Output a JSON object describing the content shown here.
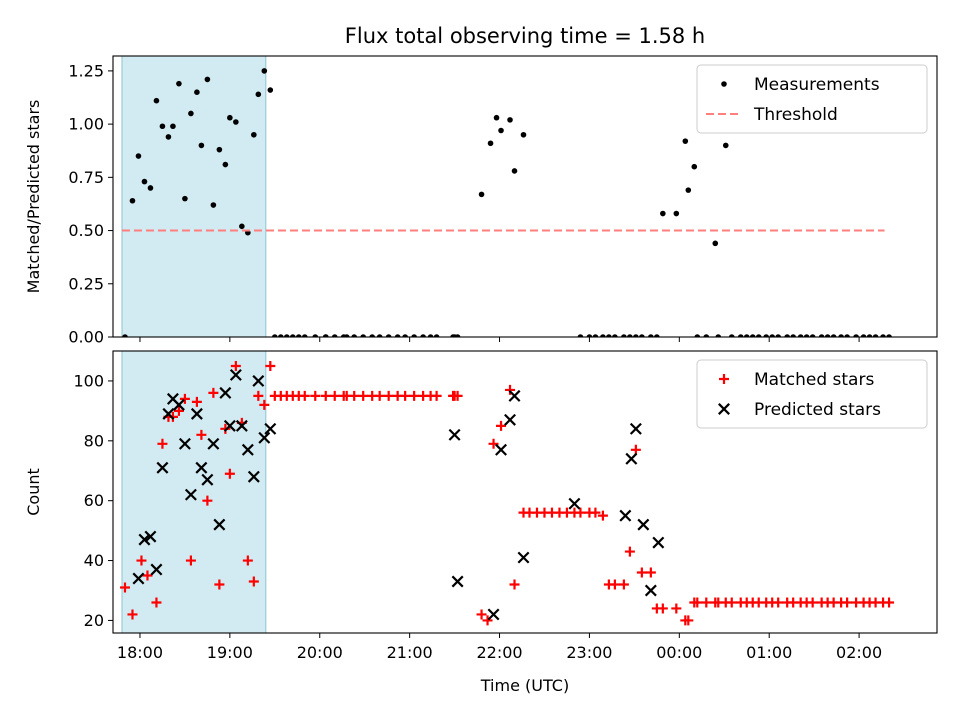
{
  "chart_data": {
    "title": "Flux total observing time = 1.58 h",
    "xlabel": "Time (UTC)",
    "x_ticks": [
      {
        "t": 0,
        "label": "18:00"
      },
      {
        "t": 60,
        "label": "19:00"
      },
      {
        "t": 120,
        "label": "20:00"
      },
      {
        "t": 180,
        "label": "21:00"
      },
      {
        "t": 240,
        "label": "22:00"
      },
      {
        "t": 300,
        "label": "23:00"
      },
      {
        "t": 360,
        "label": "00:00"
      },
      {
        "t": 420,
        "label": "01:00"
      },
      {
        "t": 480,
        "label": "02:00"
      }
    ],
    "shaded_region": {
      "x": [
        -12,
        84
      ],
      "color": "#add8e6"
    },
    "panels": [
      {
        "type": "scatter",
        "ylabel": "Matched/Predicted stars",
        "ylim": [
          0,
          1.32
        ],
        "yticks": [
          "0.00",
          "0.25",
          "0.50",
          "0.75",
          "1.00",
          "1.25"
        ],
        "xlim": [
          -18,
          532
        ],
        "legend": "top-right",
        "series": [
          {
            "name": "Measurements",
            "marker": "dot",
            "color": "#000000",
            "x": [
              -10,
              -5,
              -1,
              3,
              7,
              11,
              15,
              19,
              22,
              26,
              30,
              34,
              38,
              41,
              45,
              49,
              53,
              57,
              60,
              64,
              68,
              72,
              76,
              79,
              83,
              87,
              90,
              94,
              98,
              102,
              106,
              110,
              117,
              124,
              124,
              130,
              136,
              138,
              143,
              149,
              155,
              160,
              166,
              172,
              177,
              183,
              189,
              194,
              198,
              209,
              210,
              212,
              228,
              234,
              238,
              241,
              247,
              250,
              256,
              294,
              300,
              304,
              309,
              313,
              317,
              323,
              327,
              331,
              335,
              341,
              345,
              349,
              358,
              364,
              366,
              370,
              372,
              378,
              384,
              386,
              391,
              395,
              401,
              405,
              409,
              413,
              418,
              422,
              426,
              432,
              436,
              441,
              445,
              449,
              455,
              459,
              463,
              468,
              472,
              478,
              483,
              487,
              491,
              496,
              500
            ],
            "y": [
              0.0,
              0.64,
              0.85,
              0.73,
              0.7,
              1.11,
              0.99,
              0.94,
              0.99,
              1.19,
              0.65,
              1.05,
              1.15,
              0.9,
              1.21,
              0.62,
              0.88,
              0.81,
              1.03,
              1.01,
              0.52,
              0.49,
              0.95,
              1.14,
              1.25,
              1.16,
              0.0,
              0.0,
              0.0,
              0.0,
              0.0,
              0.0,
              0.0,
              0.0,
              0.0,
              0.0,
              0.0,
              0.0,
              0.0,
              0.0,
              0.0,
              0.0,
              0.0,
              0.0,
              0.0,
              0.0,
              0.0,
              0.0,
              0.0,
              0.0,
              0.0,
              0.0,
              0.67,
              0.91,
              1.03,
              0.97,
              1.02,
              0.78,
              0.95,
              0.0,
              0.0,
              0.0,
              0.0,
              0.0,
              0.0,
              0.0,
              0.0,
              0.0,
              0.0,
              0.0,
              0.0,
              0.58,
              0.58,
              0.92,
              0.69,
              0.8,
              0.0,
              0.0,
              0.44,
              0.0,
              0.9,
              0.0,
              0.0,
              0.0,
              0.0,
              0.0,
              0.0,
              0.0,
              0.0,
              0.0,
              0.0,
              0.0,
              0.0,
              0.0,
              0.0,
              0.0,
              0.0,
              0.0,
              0.0,
              0.0,
              0.0,
              0.0,
              0.0,
              0.0,
              0.0
            ]
          },
          {
            "name": "Threshold",
            "marker": "dashed-line",
            "color": "#ff7f7f",
            "x": [
              -12,
              497
            ],
            "y": [
              0.5,
              0.5
            ]
          }
        ]
      },
      {
        "type": "scatter",
        "ylabel": "Count",
        "ylim": [
          15.8,
          110
        ],
        "yticks": [
          "20",
          "40",
          "60",
          "80",
          "100"
        ],
        "xlim": [
          -18,
          532
        ],
        "legend": "top-right",
        "series": [
          {
            "name": "Matched stars",
            "marker": "plus",
            "color": "#ff0000",
            "x": [
              -10,
              -5,
              1,
              5,
              11,
              15,
              19,
              22,
              26,
              30,
              34,
              38,
              41,
              45,
              49,
              53,
              57,
              60,
              64,
              68,
              72,
              76,
              79,
              83,
              87,
              90,
              94,
              98,
              102,
              106,
              110,
              117,
              124,
              130,
              136,
              138,
              143,
              149,
              155,
              160,
              166,
              172,
              177,
              183,
              189,
              194,
              198,
              209,
              210,
              212,
              228,
              232,
              236,
              241,
              247,
              250,
              256,
              260,
              265,
              270,
              275,
              280,
              285,
              290,
              294,
              300,
              304,
              309,
              313,
              317,
              323,
              327,
              331,
              335,
              341,
              345,
              349,
              358,
              364,
              366,
              370,
              372,
              378,
              384,
              386,
              391,
              395,
              401,
              405,
              409,
              413,
              418,
              422,
              426,
              432,
              436,
              441,
              445,
              449,
              455,
              459,
              463,
              468,
              472,
              478,
              483,
              487,
              491,
              496,
              500
            ],
            "y": [
              31,
              22,
              40,
              35,
              26,
              79,
              88,
              88,
              90,
              94,
              40,
              93,
              82,
              60,
              96,
              32,
              84,
              69,
              105,
              86,
              40,
              33,
              95,
              92,
              105,
              95,
              95,
              95,
              95,
              95,
              95,
              95,
              95,
              95,
              95,
              95,
              95,
              95,
              95,
              95,
              95,
              95,
              95,
              95,
              95,
              95,
              95,
              95,
              95,
              95,
              22,
              20,
              79,
              85,
              97,
              32,
              56,
              56,
              56,
              56,
              56,
              56,
              56,
              56,
              56,
              56,
              56,
              55,
              32,
              32,
              32,
              43,
              77,
              36,
              36,
              24,
              24,
              24,
              20,
              20,
              26,
              26,
              26,
              26,
              26,
              26,
              26,
              26,
              26,
              26,
              26,
              26,
              26,
              26,
              26,
              26,
              26,
              26,
              26,
              26,
              26,
              26,
              26,
              26,
              26,
              26,
              26,
              26,
              26,
              26
            ]
          },
          {
            "name": "Predicted stars",
            "marker": "x",
            "color": "#000000",
            "x": [
              -1,
              3,
              7,
              11,
              15,
              19,
              22,
              26,
              30,
              34,
              38,
              41,
              45,
              49,
              53,
              57,
              60,
              64,
              68,
              72,
              76,
              79,
              83,
              87,
              210,
              212,
              236,
              241,
              247,
              250,
              256,
              290,
              324,
              328,
              331,
              336,
              341,
              346
            ],
            "y": [
              34,
              47,
              48,
              37,
              71,
              89,
              94,
              92,
              79,
              62,
              89,
              71,
              67,
              79,
              52,
              96,
              85,
              102,
              85,
              77,
              68,
              100,
              81,
              84,
              82,
              33,
              22,
              77,
              87,
              95,
              41,
              59,
              55,
              74,
              84,
              52,
              30,
              46
            ]
          }
        ]
      }
    ]
  }
}
